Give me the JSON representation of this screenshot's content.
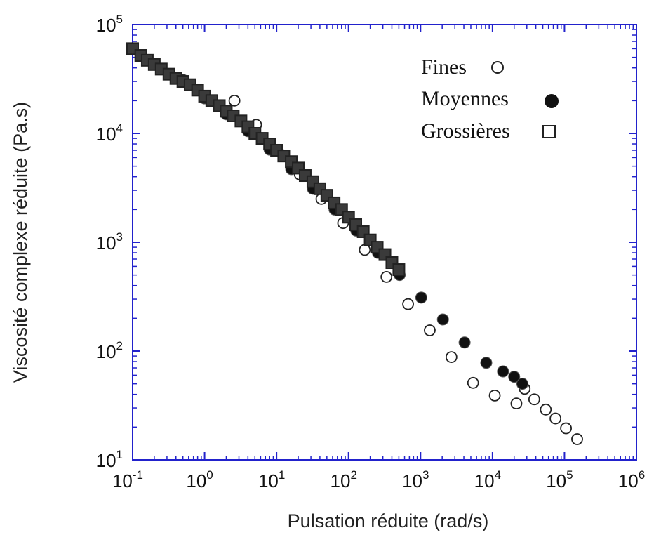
{
  "chart_data": {
    "type": "scatter",
    "title": "",
    "xlabel": "Pulsation réduite (rad/s)",
    "ylabel": "Viscosité complexe réduite (Pa.s)",
    "xscale": "log",
    "yscale": "log",
    "xlim": [
      0.1,
      1000000
    ],
    "ylim": [
      10,
      100000
    ],
    "x_ticks": [
      {
        "base": "10",
        "exp": "-1"
      },
      {
        "base": "10",
        "exp": "0"
      },
      {
        "base": "10",
        "exp": "1"
      },
      {
        "base": "10",
        "exp": "2"
      },
      {
        "base": "10",
        "exp": "3"
      },
      {
        "base": "10",
        "exp": "4"
      },
      {
        "base": "10",
        "exp": "5"
      },
      {
        "base": "10",
        "exp": "6"
      }
    ],
    "y_ticks": [
      {
        "base": "10",
        "exp": "1"
      },
      {
        "base": "10",
        "exp": "2"
      },
      {
        "base": "10",
        "exp": "3"
      },
      {
        "base": "10",
        "exp": "4"
      },
      {
        "base": "10",
        "exp": "5"
      }
    ],
    "grid": false,
    "legend_position": "top-right",
    "frame_color": "#2222cc",
    "series": [
      {
        "name": "Fines",
        "marker": "open-circle",
        "color": "#222222",
        "points": [
          [
            2.6,
            20000
          ],
          [
            5.2,
            12000
          ],
          [
            10.4,
            7000
          ],
          [
            21,
            4200
          ],
          [
            42,
            2500
          ],
          [
            84,
            1500
          ],
          [
            168,
            850
          ],
          [
            336,
            480
          ],
          [
            672,
            270
          ],
          [
            1344,
            155
          ],
          [
            2688,
            88
          ],
          [
            5376,
            51
          ],
          [
            10750,
            39
          ],
          [
            21500,
            33
          ],
          [
            28000,
            45
          ],
          [
            38000,
            36
          ],
          [
            55000,
            29
          ],
          [
            75000,
            24
          ],
          [
            105000,
            19.5
          ],
          [
            150000,
            15.5
          ]
        ]
      },
      {
        "name": "Moyennes",
        "marker": "filled-circle",
        "color": "#111111",
        "points": [
          [
            0.5,
            31000
          ],
          [
            1,
            21000
          ],
          [
            2,
            15000
          ],
          [
            4,
            10500
          ],
          [
            8,
            7100
          ],
          [
            16,
            4700
          ],
          [
            32,
            3100
          ],
          [
            64,
            2000
          ],
          [
            128,
            1280
          ],
          [
            256,
            800
          ],
          [
            512,
            500
          ],
          [
            1024,
            310
          ],
          [
            2048,
            195
          ],
          [
            4096,
            120
          ],
          [
            8192,
            78
          ],
          [
            14000,
            65
          ],
          [
            20000,
            58
          ],
          [
            26000,
            50
          ]
        ]
      },
      {
        "name": "Grossières",
        "marker": "open-square",
        "color": "#222222",
        "points": [
          [
            0.1,
            60000
          ],
          [
            0.13,
            52000
          ],
          [
            0.16,
            47000
          ],
          [
            0.2,
            43000
          ],
          [
            0.25,
            39000
          ],
          [
            0.32,
            35000
          ],
          [
            0.4,
            32000
          ],
          [
            0.5,
            30000
          ],
          [
            0.63,
            28000
          ],
          [
            0.8,
            25000
          ],
          [
            1,
            22000
          ],
          [
            1.26,
            20000
          ],
          [
            1.6,
            18000
          ],
          [
            2,
            16000
          ],
          [
            2.5,
            14500
          ],
          [
            3.2,
            13000
          ],
          [
            4,
            11500
          ],
          [
            5,
            10000
          ],
          [
            6.3,
            9000
          ],
          [
            8,
            8000
          ],
          [
            10,
            7000
          ],
          [
            12.6,
            6200
          ],
          [
            16,
            5500
          ],
          [
            20,
            4800
          ],
          [
            25,
            4100
          ],
          [
            32,
            3600
          ],
          [
            40,
            3100
          ],
          [
            50,
            2700
          ],
          [
            63,
            2300
          ],
          [
            80,
            2000
          ],
          [
            100,
            1700
          ],
          [
            126,
            1450
          ],
          [
            160,
            1250
          ],
          [
            200,
            1050
          ],
          [
            250,
            900
          ],
          [
            320,
            770
          ],
          [
            400,
            650
          ],
          [
            500,
            560
          ]
        ]
      }
    ]
  }
}
